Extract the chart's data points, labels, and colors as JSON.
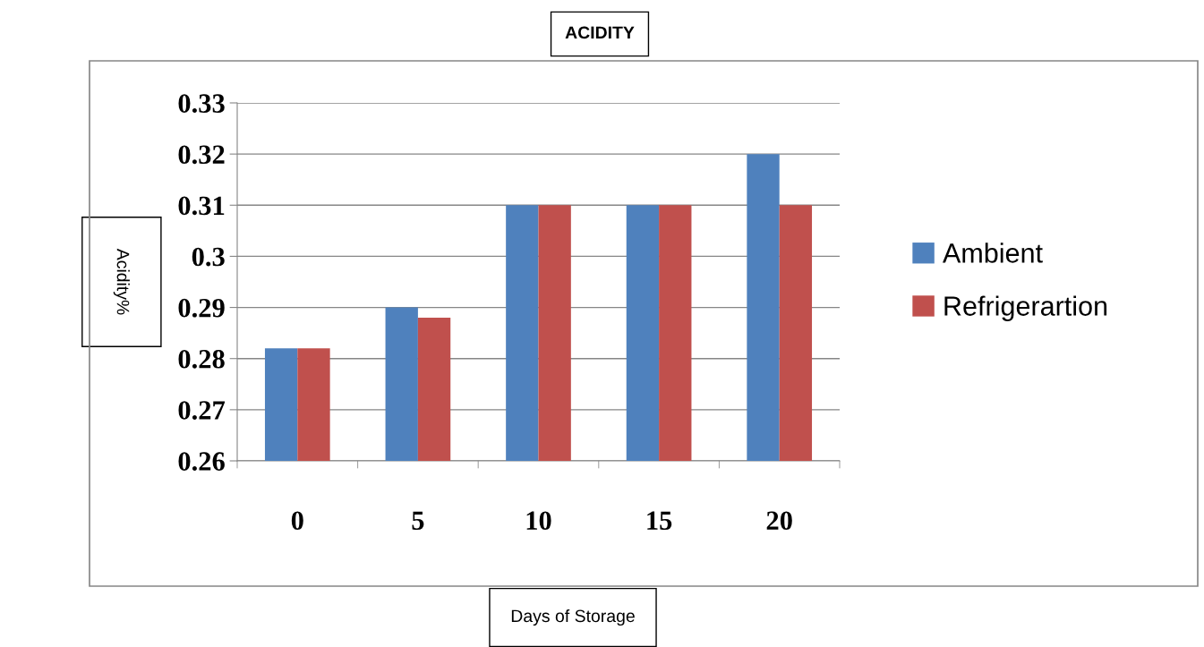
{
  "chart_data": {
    "type": "bar",
    "title": "ACIDITY",
    "xlabel": "Days of Storage",
    "ylabel": "Acidity%",
    "categories": [
      "0",
      "5",
      "10",
      "15",
      "20"
    ],
    "series": [
      {
        "name": "Ambient",
        "color": "#4f81bd",
        "values": [
          0.282,
          0.29,
          0.31,
          0.31,
          0.32
        ]
      },
      {
        "name": "Refrigerartion",
        "color": "#c0504d",
        "values": [
          0.282,
          0.288,
          0.31,
          0.31,
          0.31
        ]
      }
    ],
    "ylim": [
      0.26,
      0.33
    ],
    "yticks": [
      0.26,
      0.27,
      0.28,
      0.29,
      0.3,
      0.31,
      0.32,
      0.33
    ],
    "grid": "y",
    "legend": "right"
  }
}
